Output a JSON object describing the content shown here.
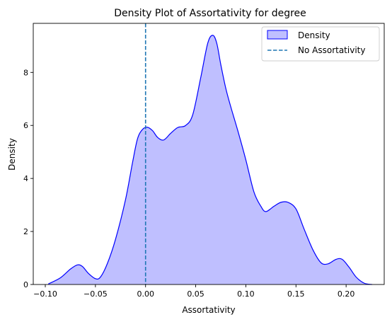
{
  "chart_data": {
    "type": "area",
    "title": "Density Plot of Assortativity for degree",
    "xlabel": "Assortativity",
    "ylabel": "Density",
    "xlim": [
      -0.112,
      0.238
    ],
    "ylim": [
      0,
      9.85
    ],
    "xticks": [
      -0.1,
      -0.05,
      0.0,
      0.05,
      0.1,
      0.15,
      0.2
    ],
    "xtick_labels": [
      "−0.10",
      "−0.05",
      "0.00",
      "0.05",
      "0.10",
      "0.15",
      "0.20"
    ],
    "yticks": [
      0,
      2,
      4,
      6,
      8
    ],
    "ytick_labels": [
      "0",
      "2",
      "4",
      "6",
      "8"
    ],
    "grid": false,
    "legend_position": "top-right",
    "series": [
      {
        "name": "Density",
        "color": "#0000ff",
        "fill": "#bfbfff",
        "x": [
          -0.097,
          -0.085,
          -0.075,
          -0.068,
          -0.063,
          -0.057,
          -0.05,
          -0.045,
          -0.038,
          -0.03,
          -0.02,
          -0.013,
          -0.008,
          -0.003,
          0.002,
          0.007,
          0.012,
          0.018,
          0.025,
          0.032,
          0.04,
          0.047,
          0.055,
          0.062,
          0.067,
          0.071,
          0.075,
          0.08,
          0.085,
          0.092,
          0.1,
          0.108,
          0.115,
          0.12,
          0.128,
          0.135,
          0.142,
          0.15,
          0.158,
          0.167,
          0.175,
          0.182,
          0.19,
          0.196,
          0.203,
          0.21,
          0.218,
          0.226
        ],
        "y": [
          0.02,
          0.25,
          0.58,
          0.74,
          0.68,
          0.42,
          0.22,
          0.28,
          0.8,
          1.7,
          3.2,
          4.6,
          5.5,
          5.85,
          5.93,
          5.8,
          5.55,
          5.45,
          5.7,
          5.92,
          6.0,
          6.4,
          7.8,
          9.1,
          9.4,
          9.1,
          8.3,
          7.4,
          6.7,
          5.8,
          4.7,
          3.5,
          2.95,
          2.75,
          2.95,
          3.1,
          3.1,
          2.85,
          2.1,
          1.3,
          0.82,
          0.78,
          0.95,
          0.95,
          0.65,
          0.28,
          0.05,
          0.0
        ]
      }
    ],
    "reference_lines": [
      {
        "name": "No Assortativity",
        "orientation": "vertical",
        "x": 0.0,
        "color": "#1f77b4",
        "style": "dashed"
      }
    ]
  }
}
